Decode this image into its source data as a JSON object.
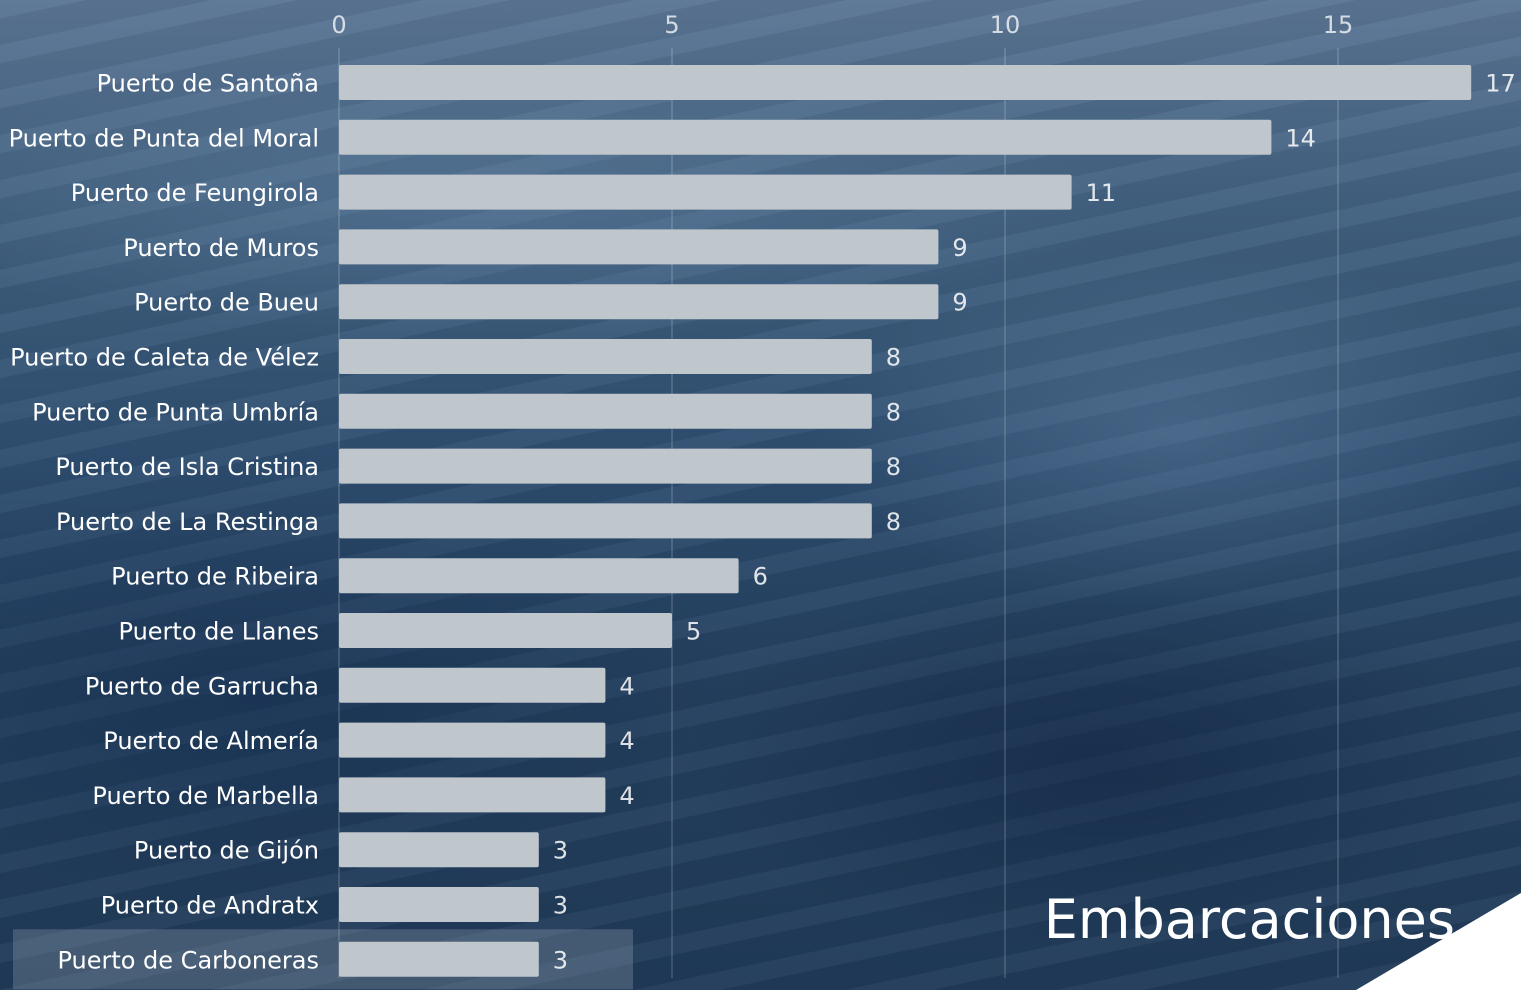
{
  "chart_data": {
    "type": "bar",
    "orientation": "horizontal",
    "categories": [
      "Puerto de Santoña",
      "Puerto de Punta del Moral",
      "Puerto de Feungirola",
      "Puerto de Muros",
      "Puerto de Bueu",
      "Puerto de Caleta de Vélez",
      "Puerto de Punta Umbría",
      "Puerto de Isla Cristina",
      "Puerto de La Restinga",
      "Puerto de Ribeira",
      "Puerto de Llanes",
      "Puerto de Garrucha",
      "Puerto de Almería",
      "Puerto de Marbella",
      "Puerto de Gijón",
      "Puerto de Andratx",
      "Puerto de Carboneras"
    ],
    "series": [
      {
        "name": "Embarcaciones",
        "values": [
          17,
          14,
          11,
          9,
          9,
          8,
          8,
          8,
          8,
          6,
          5,
          4,
          4,
          4,
          3,
          3,
          3
        ]
      }
    ],
    "xlim": [
      0,
      17.7
    ],
    "xticks": [
      0,
      5,
      10,
      15
    ],
    "tick_labels": [
      "0",
      "5",
      "10",
      "15"
    ],
    "grid": true,
    "axis_position": "top",
    "legend_position": "bottom-right",
    "highlighted_category": "Puerto de Carboneras",
    "colors": {
      "bar": "#bfc6cc",
      "text": "#ffffff",
      "background": "#2d4c6e"
    }
  }
}
